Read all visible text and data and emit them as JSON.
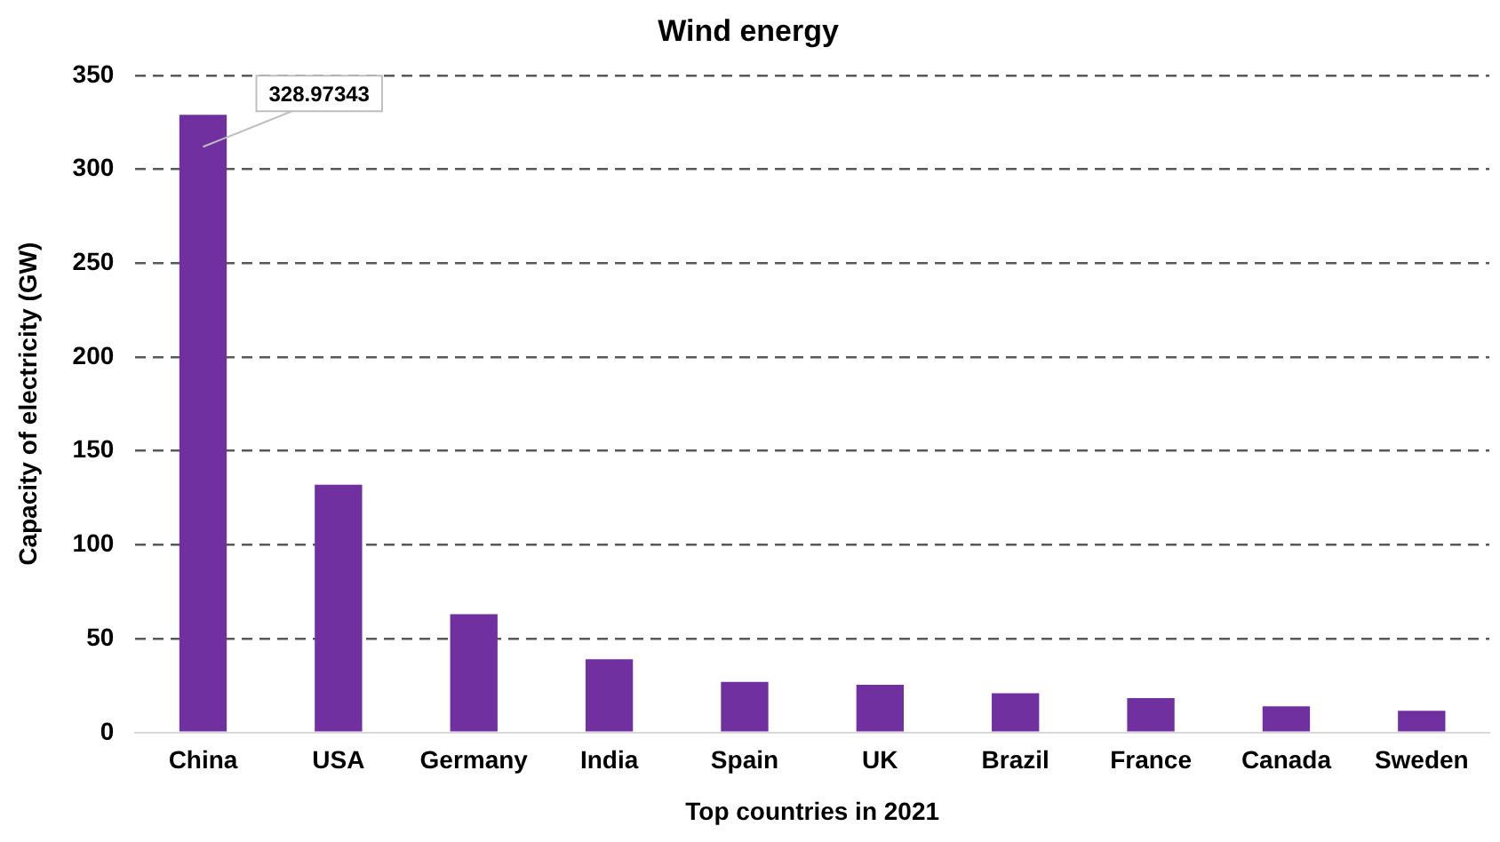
{
  "chart_data": {
    "type": "bar",
    "title": "Wind energy",
    "xlabel": "Top countries in 2021",
    "ylabel": "Capacity of electricity (GW)",
    "categories": [
      "China",
      "USA",
      "Germany",
      "India",
      "Spain",
      "UK",
      "Brazil",
      "France",
      "Canada",
      "Sweden"
    ],
    "values": [
      328.97343,
      132,
      63,
      39,
      27,
      25.5,
      21,
      18.4,
      14,
      11.6
    ],
    "value_labels": [
      "328.97343",
      null,
      null,
      null,
      null,
      null,
      null,
      null,
      null,
      null
    ],
    "color": "#7030a0",
    "ylim": [
      0,
      350
    ],
    "yticks": [
      0,
      50,
      100,
      150,
      200,
      250,
      300,
      350
    ],
    "grid": "y",
    "legend": false
  }
}
